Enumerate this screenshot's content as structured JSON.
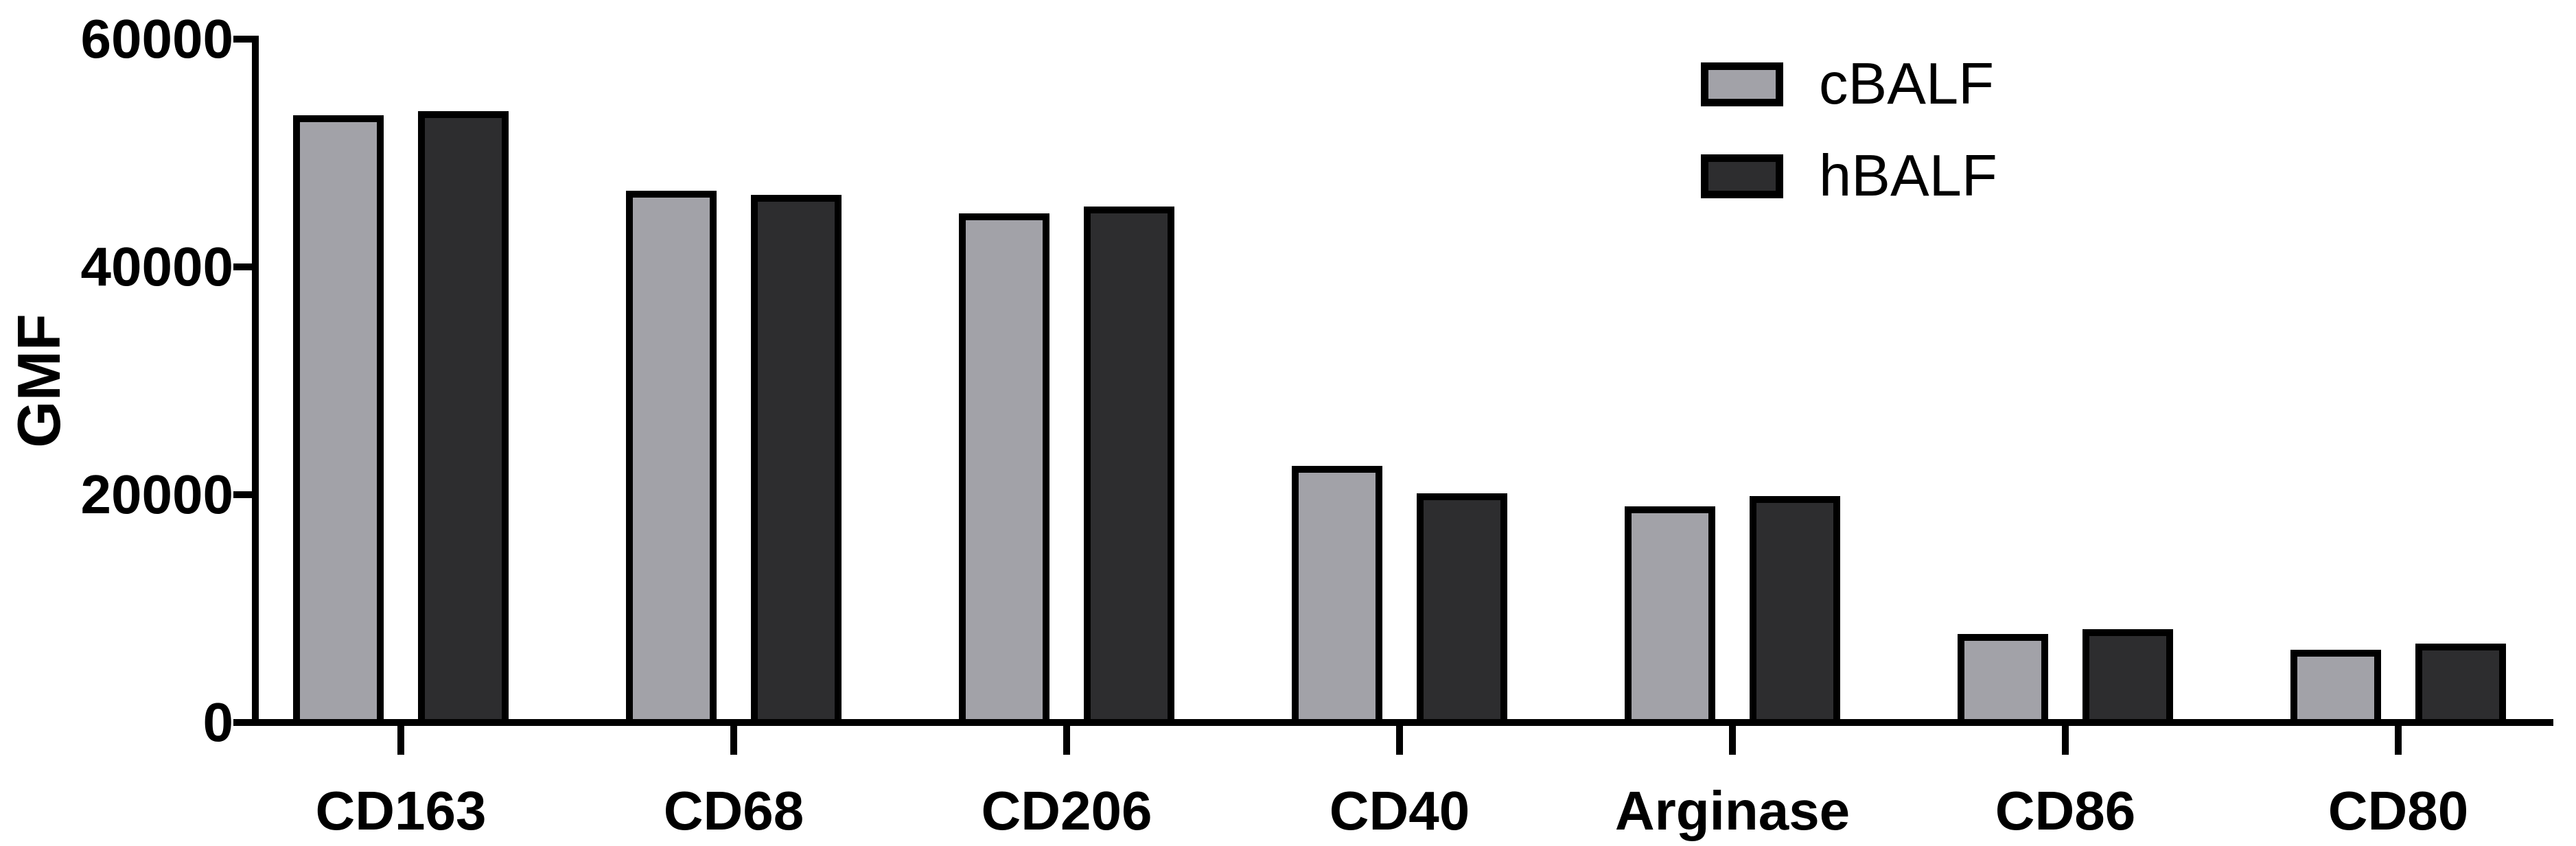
{
  "page": {
    "background": "#FFFFFF",
    "axis_color": "#000000"
  },
  "chart_data": {
    "type": "bar",
    "title": "",
    "xlabel": "",
    "ylabel": "GMF",
    "categories": [
      "CD163",
      "CD68",
      "CD206",
      "CD40",
      "Arginase",
      "CD86",
      "CD80"
    ],
    "series": [
      {
        "name": "cBALF",
        "color": "#A2A2A8",
        "values": [
          53000,
          46400,
          44400,
          22200,
          18700,
          7500,
          6100
        ]
      },
      {
        "name": "hBALF",
        "color": "#2D2D2F",
        "values": [
          53400,
          46000,
          45000,
          19800,
          19600,
          7900,
          6600
        ]
      }
    ],
    "ylim": [
      0,
      60000
    ],
    "yticks": [
      0,
      20000,
      40000,
      60000
    ],
    "ytick_labels": [
      "0",
      "20000",
      "40000",
      "60000"
    ],
    "bar_border_color": "#000000",
    "grid": false,
    "legend_position": "top-right"
  }
}
